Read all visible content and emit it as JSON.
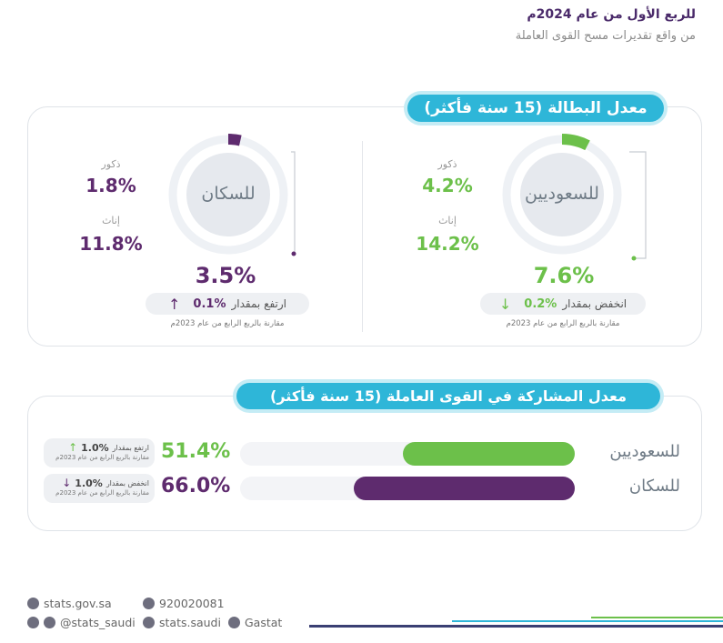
{
  "header": {
    "title": "للربع الأول من عام 2024م",
    "subtitle": "من واقع تقديرات مسح القوى العاملة"
  },
  "unemployment": {
    "title": "معدل البطالة (15 سنة فأكثر)",
    "saudis": {
      "label": "للسعوديين",
      "color": "#6cc04a",
      "male_label": "ذكور",
      "male_value": "4.2%",
      "female_label": "إناث",
      "female_value": "14.2%",
      "rate": "7.6%",
      "rate_fraction": 0.076,
      "change_text": "انخفض بمقدار",
      "change_value": "0.2%",
      "change_direction": "down",
      "note": "مقارنة بالربع الرابع من عام 2023م"
    },
    "population": {
      "label": "للسكان",
      "color": "#5e2b6e",
      "male_label": "ذكور",
      "male_value": "1.8%",
      "female_label": "إناث",
      "female_value": "11.8%",
      "rate": "3.5%",
      "rate_fraction": 0.035,
      "change_text": "ارتفع بمقدار",
      "change_value": "0.1%",
      "change_direction": "up",
      "note": "مقارنة بالربع الرابع من عام 2023م"
    }
  },
  "participation": {
    "title": "معدل المشاركة في القوى العاملة (15 سنة فأكثر)",
    "rows": [
      {
        "label": "للسعوديين",
        "value": "51.4%",
        "fraction": 0.514,
        "color": "#6cc04a",
        "change_text": "ارتفع بمقدار",
        "change_value": "1.0%",
        "change_direction": "up",
        "note": "مقارنة بالربع الرابع من عام 2023م"
      },
      {
        "label": "للسكان",
        "value": "66.0%",
        "fraction": 0.66,
        "color": "#5e2b6e",
        "change_text": "انخفض بمقدار",
        "change_value": "1.0%",
        "change_direction": "down",
        "note": "مقارنة بالربع الرابع من عام 2023م"
      }
    ]
  },
  "footer": {
    "website": "stats.gov.sa",
    "phone": "920020081",
    "twitter_instagram": "@stats_saudi",
    "facebook": "stats.saudi",
    "linkedin": "Gastat"
  }
}
